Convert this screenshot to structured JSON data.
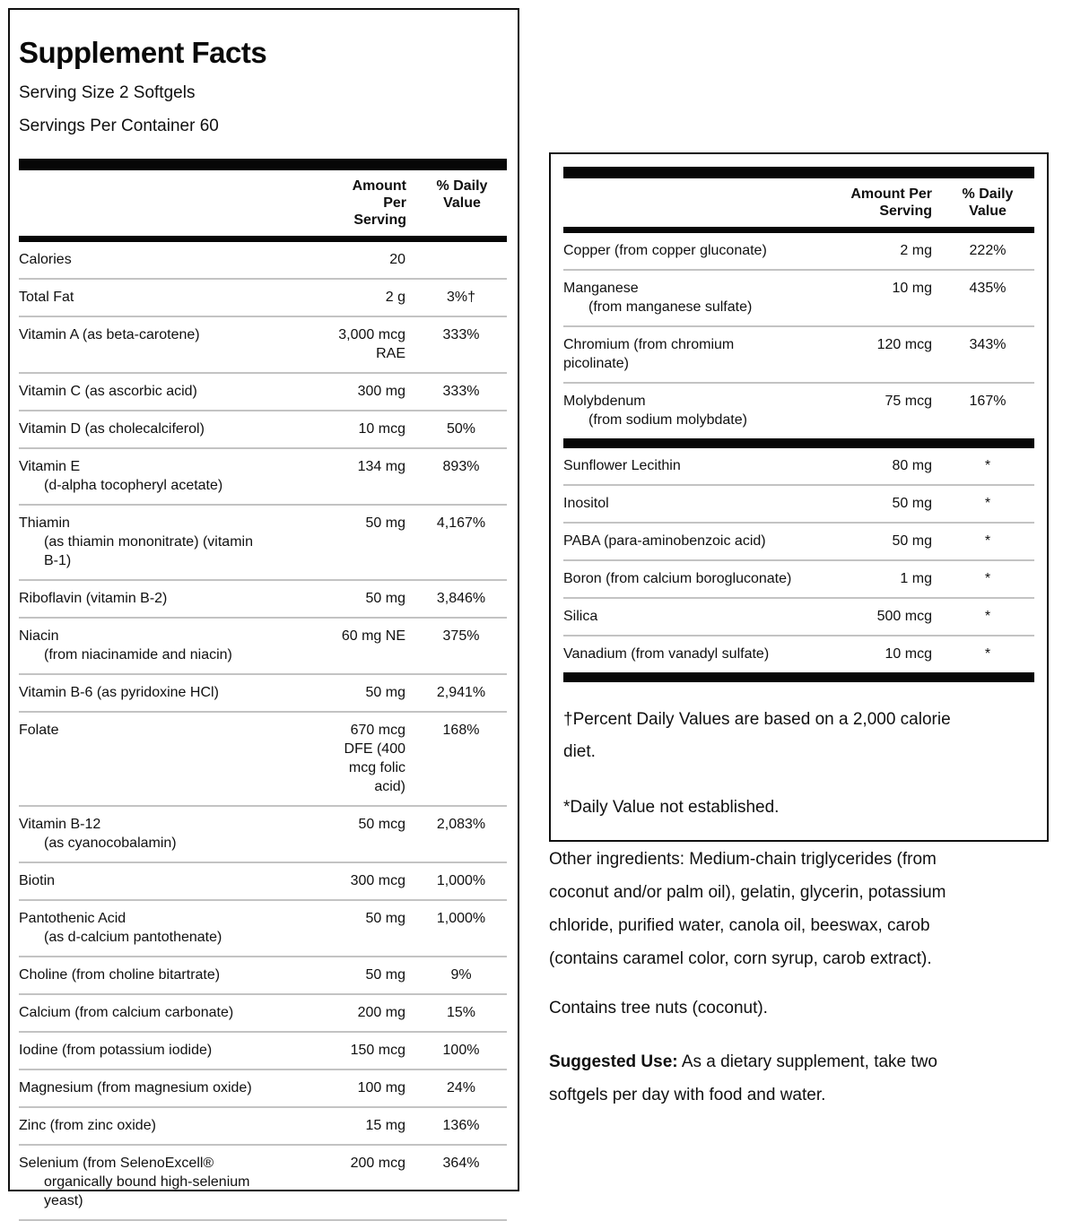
{
  "label": {
    "title": "Supplement Facts",
    "serving_size": "Serving Size 2 Softgels",
    "servings_per_container": "Servings Per Container 60"
  },
  "columns": {
    "amount": "Amount Per\nServing",
    "daily_value": "% Daily\nValue"
  },
  "left_table": {
    "rows": [
      {
        "name": "Calories",
        "sub": "",
        "amount": "20",
        "dv": ""
      },
      {
        "name": "Total Fat",
        "sub": "",
        "amount": "2 g",
        "dv": "3%†"
      },
      {
        "name": "Vitamin A (as beta-carotene)",
        "sub": "",
        "amount": "3,000 mcg\nRAE",
        "dv": "333%"
      },
      {
        "name": "Vitamin C (as ascorbic acid)",
        "sub": "",
        "amount": "300 mg",
        "dv": "333%"
      },
      {
        "name": "Vitamin D (as cholecalciferol)",
        "sub": "",
        "amount": "10 mcg",
        "dv": "50%"
      },
      {
        "name": "Vitamin E",
        "sub": "(d-alpha tocopheryl acetate)",
        "amount": "134 mg",
        "dv": "893%"
      },
      {
        "name": "Thiamin",
        "sub": "(as thiamin mononitrate) (vitamin\nB-1)",
        "amount": "50 mg",
        "dv": "4,167%"
      },
      {
        "name": "Riboflavin (vitamin B-2)",
        "sub": "",
        "amount": "50 mg",
        "dv": "3,846%"
      },
      {
        "name": "Niacin",
        "sub": "(from niacinamide and niacin)",
        "amount": "60 mg NE",
        "dv": "375%"
      },
      {
        "name": "Vitamin B-6 (as pyridoxine HCl)",
        "sub": "",
        "amount": "50 mg",
        "dv": "2,941%"
      },
      {
        "name": "Folate",
        "sub": "",
        "amount": "670 mcg\nDFE (400\nmcg folic\nacid)",
        "dv": "168%"
      },
      {
        "name": "Vitamin B-12",
        "sub": "(as cyanocobalamin)",
        "amount": "50 mcg",
        "dv": "2,083%"
      },
      {
        "name": "Biotin",
        "sub": "",
        "amount": "300 mcg",
        "dv": "1,000%"
      },
      {
        "name": "Pantothenic Acid",
        "sub": "(as d-calcium pantothenate)",
        "amount": "50 mg",
        "dv": "1,000%"
      },
      {
        "name": "Choline (from choline bitartrate)",
        "sub": "",
        "amount": "50 mg",
        "dv": "9%"
      },
      {
        "name": "Calcium (from calcium carbonate)",
        "sub": "",
        "amount": "200 mg",
        "dv": "15%"
      },
      {
        "name": "Iodine (from potassium iodide)",
        "sub": "",
        "amount": "150 mcg",
        "dv": "100%"
      },
      {
        "name": "Magnesium (from magnesium oxide)",
        "sub": "",
        "amount": "100 mg",
        "dv": "24%"
      },
      {
        "name": "Zinc (from zinc oxide)",
        "sub": "",
        "amount": "15 mg",
        "dv": "136%"
      },
      {
        "name": "Selenium (from SelenoExcell®",
        "sub": "organically bound high-selenium\nyeast)",
        "amount": "200 mcg",
        "dv": "364%"
      }
    ]
  },
  "right_table": {
    "rows_minerals": [
      {
        "name": "Copper (from copper gluconate)",
        "sub": "",
        "amount": "2 mg",
        "dv": "222%"
      },
      {
        "name": "Manganese",
        "sub": "(from manganese sulfate)",
        "amount": "10 mg",
        "dv": "435%"
      },
      {
        "name": "Chromium (from chromium\npicolinate)",
        "sub": "",
        "amount": "120 mcg",
        "dv": "343%"
      },
      {
        "name": "Molybdenum",
        "sub": "(from sodium molybdate)",
        "amount": "75 mcg",
        "dv": "167%"
      }
    ],
    "rows_other": [
      {
        "name": "Sunflower Lecithin",
        "sub": "",
        "amount": "80 mg",
        "dv": "*"
      },
      {
        "name": "Inositol",
        "sub": "",
        "amount": "50 mg",
        "dv": "*"
      },
      {
        "name": "PABA (para-aminobenzoic acid)",
        "sub": "",
        "amount": "50 mg",
        "dv": "*"
      },
      {
        "name": "Boron (from calcium borogluconate)",
        "sub": "",
        "amount": "1 mg",
        "dv": "*"
      },
      {
        "name": "Silica",
        "sub": "",
        "amount": "500 mcg",
        "dv": "*"
      },
      {
        "name": "Vanadium (from vanadyl sulfate)",
        "sub": "",
        "amount": "10 mcg",
        "dv": "*"
      }
    ]
  },
  "footnotes": {
    "percent_dv": "†Percent Daily Values are based on a 2,000 calorie\ndiet.",
    "not_established": "*Daily Value not established."
  },
  "other_ingredients": "Other ingredients: Medium-chain triglycerides (from\ncoconut and/or palm oil), gelatin, glycerin, potassium\nchloride, purified water, canola oil, beeswax, carob\n(contains caramel color, corn syrup, carob extract).",
  "contains": "Contains tree nuts (coconut).",
  "suggested_use": {
    "label": "Suggested Use:",
    "text": " As a dietary supplement, take two\nsoftgels per day with food and water."
  }
}
